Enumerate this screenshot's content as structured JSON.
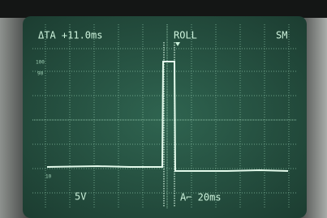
{
  "screen": {
    "readouts": {
      "cursor_delta": "ΔTA +11.0ms",
      "mode": "ROLL",
      "sample": "SM",
      "volts_per_div": "5V",
      "time_per_div": "A⌐ 20ms"
    },
    "graticule_labels": {
      "top": "100",
      "upper": "90",
      "lower": "10"
    }
  }
}
